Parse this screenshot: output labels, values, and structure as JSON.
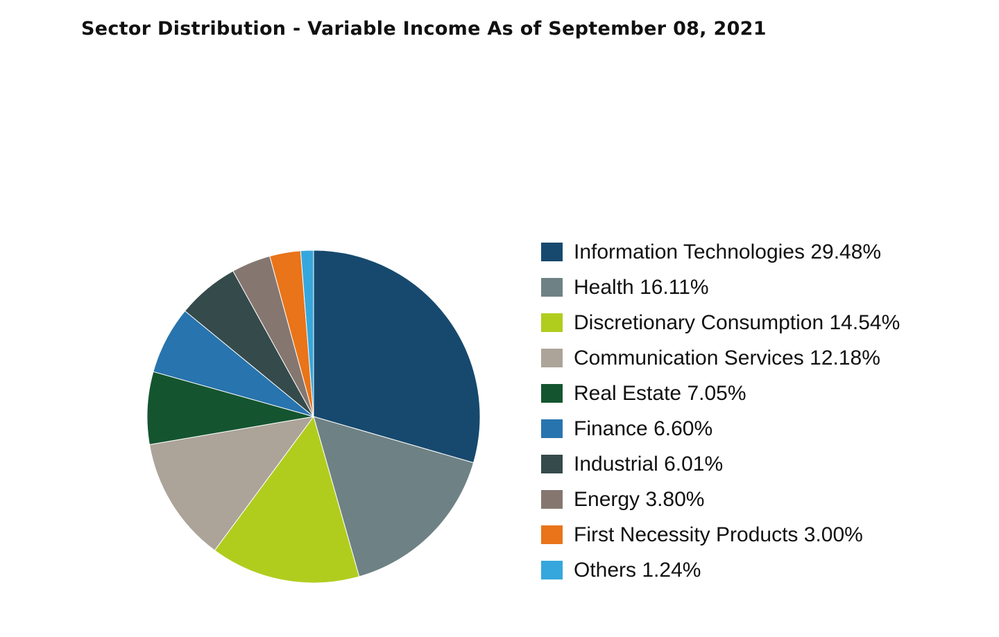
{
  "chart_data": {
    "type": "pie",
    "title": "Sector Distribution - Variable Income As of September  08, 2021",
    "start_position": "top (12 o'clock)",
    "direction": "clockwise",
    "legend_placement": "right",
    "slices": [
      {
        "label": "Information Technologies",
        "value": 29.48,
        "value_label": "29.48%",
        "color": "#17496e"
      },
      {
        "label": "Health",
        "value": 16.11,
        "value_label": "16.11%",
        "color": "#6e8285"
      },
      {
        "label": "Discretionary Consumption",
        "value": 14.54,
        "value_label": "14.54%",
        "color": "#b0cd1e"
      },
      {
        "label": "Communication Services",
        "value": 12.18,
        "value_label": "12.18%",
        "color": "#aca399"
      },
      {
        "label": "Real Estate",
        "value": 7.05,
        "value_label": "7.05%",
        "color": "#145530"
      },
      {
        "label": "Finance",
        "value": 6.6,
        "value_label": "6.60%",
        "color": "#2874ae"
      },
      {
        "label": "Industrial",
        "value": 6.01,
        "value_label": "6.01%",
        "color": "#354a4b"
      },
      {
        "label": "Energy",
        "value": 3.8,
        "value_label": "3.80%",
        "color": "#857770"
      },
      {
        "label": "First Necessity Products",
        "value": 3.0,
        "value_label": "3.00%",
        "color": "#e97419"
      },
      {
        "label": "Others",
        "value": 1.24,
        "value_label": "1.24%",
        "color": "#36a7dd"
      }
    ]
  }
}
